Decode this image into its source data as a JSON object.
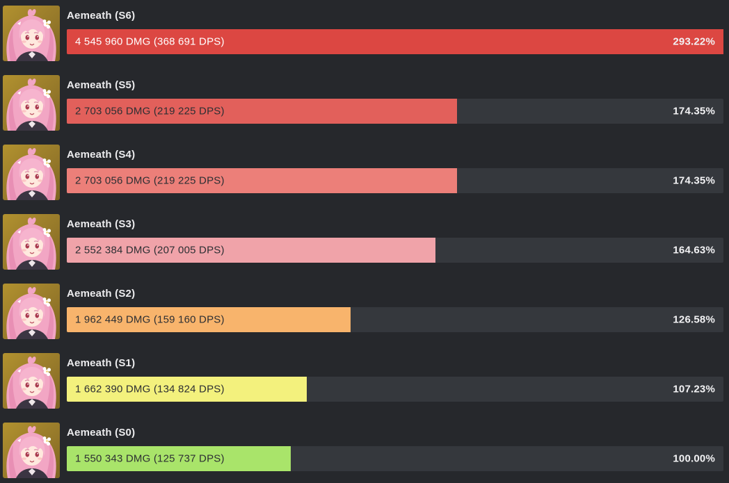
{
  "chart_data": {
    "type": "bar",
    "orientation": "horizontal",
    "unit": "percent of S0 baseline",
    "axis_max_pct": 293.22,
    "track_color": "#35383d",
    "background_color": "#26282c",
    "categories": [
      "Aemeath (S6)",
      "Aemeath (S5)",
      "Aemeath (S4)",
      "Aemeath (S3)",
      "Aemeath (S2)",
      "Aemeath (S1)",
      "Aemeath (S0)"
    ],
    "values_pct": [
      293.22,
      174.35,
      174.35,
      164.63,
      126.58,
      107.23,
      100.0
    ],
    "portrait_icon": "aemeath-portrait",
    "rows": [
      {
        "label": "Aemeath (S6)",
        "value_text": "4 545 960 DMG (368 691 DPS)",
        "dmg": 4545960,
        "dps": 368691,
        "pct": 293.22,
        "pct_label": "293.22%",
        "color": "#dc4742",
        "text_color": "#ffffff"
      },
      {
        "label": "Aemeath (S5)",
        "value_text": "2 703 056 DMG (219 225 DPS)",
        "dmg": 2703056,
        "dps": 219225,
        "pct": 174.35,
        "pct_label": "174.35%",
        "color": "#e2605b",
        "text_color": "#2d2f33"
      },
      {
        "label": "Aemeath (S4)",
        "value_text": "2 703 056 DMG (219 225 DPS)",
        "dmg": 2703056,
        "dps": 219225,
        "pct": 174.35,
        "pct_label": "174.35%",
        "color": "#ec7f79",
        "text_color": "#2d2f33"
      },
      {
        "label": "Aemeath (S3)",
        "value_text": "2 552 384 DMG (207 005 DPS)",
        "dmg": 2552384,
        "dps": 207005,
        "pct": 164.63,
        "pct_label": "164.63%",
        "color": "#f0a3a9",
        "text_color": "#2d2f33"
      },
      {
        "label": "Aemeath (S2)",
        "value_text": "1 962 449 DMG (159 160 DPS)",
        "dmg": 1962449,
        "dps": 159160,
        "pct": 126.58,
        "pct_label": "126.58%",
        "color": "#f8b46c",
        "text_color": "#2d2f33"
      },
      {
        "label": "Aemeath (S1)",
        "value_text": "1 662 390 DMG (134 824 DPS)",
        "dmg": 1662390,
        "dps": 134824,
        "pct": 107.23,
        "pct_label": "107.23%",
        "color": "#f3f17d",
        "text_color": "#2d2f33"
      },
      {
        "label": "Aemeath (S0)",
        "value_text": "1 550 343 DMG (125 737 DPS)",
        "dmg": 1550343,
        "dps": 125737,
        "pct": 100.0,
        "pct_label": "100.00%",
        "color": "#a9e46a",
        "text_color": "#2d2f33"
      }
    ]
  }
}
